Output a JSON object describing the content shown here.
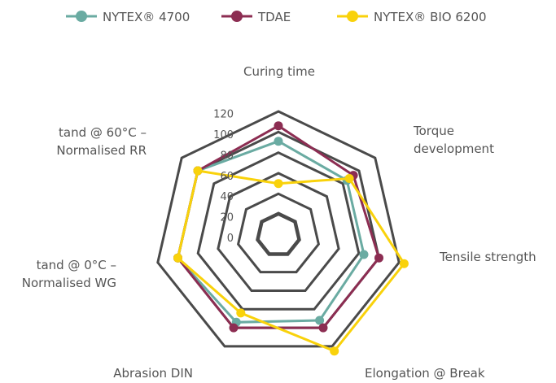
{
  "chart_data": {
    "type": "radar",
    "axes": [
      [
        "Curing time"
      ],
      [
        "Torque",
        "development"
      ],
      [
        "Tensile strength"
      ],
      [
        "Elongation @ Break"
      ],
      [
        "Abrasion DIN"
      ],
      [
        "tand @ 0°C –",
        "Normalised WG"
      ],
      [
        "tand @ 60°C –",
        "Normalised RR"
      ]
    ],
    "rlim": [
      0,
      120
    ],
    "ticks": [
      "0",
      "20",
      "40",
      "60",
      "80",
      "100",
      "120"
    ],
    "tick_values": [
      0,
      20,
      40,
      60,
      80,
      100,
      120
    ],
    "grid": true,
    "legend_position": "top",
    "series": [
      {
        "name": "NYTEX® 4700",
        "color": "#6aaba2",
        "values": [
          91,
          85,
          85,
          92,
          94,
          100,
          100
        ]
      },
      {
        "name": "TDAE",
        "color": "#8c2d52",
        "values": [
          106,
          93,
          100,
          100,
          100,
          100,
          100
        ]
      },
      {
        "name": "NYTEX® BIO 6200",
        "color": "#f9d20b",
        "values": [
          50,
          88,
          125,
          125,
          84,
          100,
          100
        ]
      }
    ],
    "grid_color": "#4a4a4a"
  }
}
